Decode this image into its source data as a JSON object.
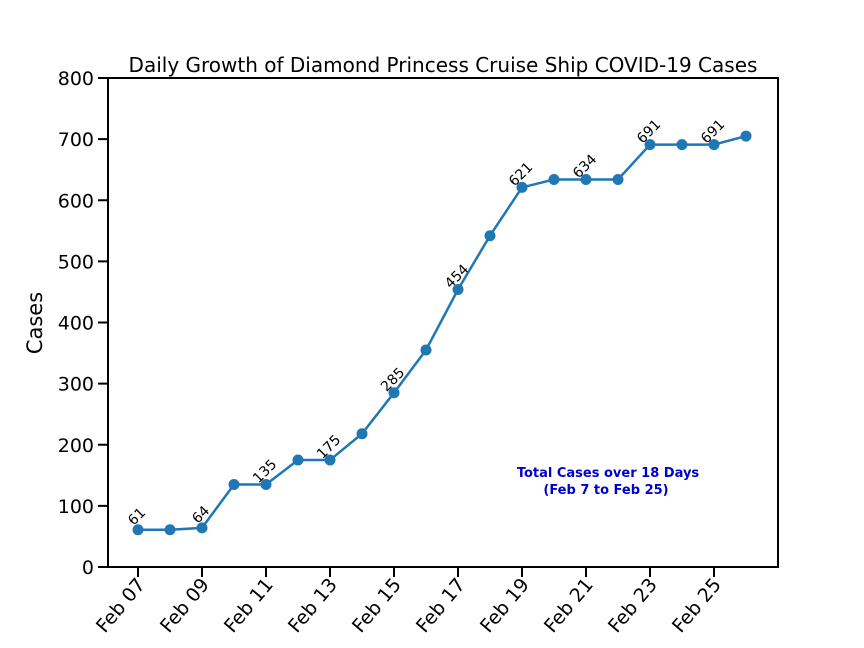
{
  "chart_data": {
    "type": "line",
    "title": "Daily Growth of Diamond Princess Cruise Ship COVID-19 Cases",
    "xlabel": "",
    "ylabel": "Cases",
    "ylim": [
      0,
      800
    ],
    "yticks": [
      0,
      100,
      200,
      300,
      400,
      500,
      600,
      700,
      800
    ],
    "x": [
      "Feb 07",
      "Feb 08",
      "Feb 09",
      "Feb 10",
      "Feb 11",
      "Feb 12",
      "Feb 13",
      "Feb 14",
      "Feb 15",
      "Feb 16",
      "Feb 17",
      "Feb 18",
      "Feb 19",
      "Feb 20",
      "Feb 21",
      "Feb 22",
      "Feb 23",
      "Feb 24",
      "Feb 25",
      "Feb 26"
    ],
    "xticks": [
      "Feb 07",
      "Feb 09",
      "Feb 11",
      "Feb 13",
      "Feb 15",
      "Feb 17",
      "Feb 19",
      "Feb 21",
      "Feb 23",
      "Feb 25"
    ],
    "series": [
      {
        "values": [
          61,
          61,
          64,
          135,
          135,
          175,
          175,
          218,
          285,
          355,
          454,
          542,
          621,
          634,
          634,
          634,
          691,
          691,
          691,
          705
        ],
        "color": "#1f77b4"
      }
    ],
    "point_labels": [
      {
        "index": 0,
        "text": "61"
      },
      {
        "index": 2,
        "text": "64"
      },
      {
        "index": 4,
        "text": "135"
      },
      {
        "index": 6,
        "text": "175"
      },
      {
        "index": 8,
        "text": "285"
      },
      {
        "index": 10,
        "text": "454"
      },
      {
        "index": 12,
        "text": "621"
      },
      {
        "index": 14,
        "text": "634"
      },
      {
        "index": 16,
        "text": "691"
      },
      {
        "index": 18,
        "text": "691"
      }
    ],
    "annotation": {
      "lines": [
        "Total Cases over 18 Days",
        "(Feb 7 to Feb 25)"
      ],
      "color": "#0000cc"
    },
    "grid": false,
    "legend": "none"
  }
}
